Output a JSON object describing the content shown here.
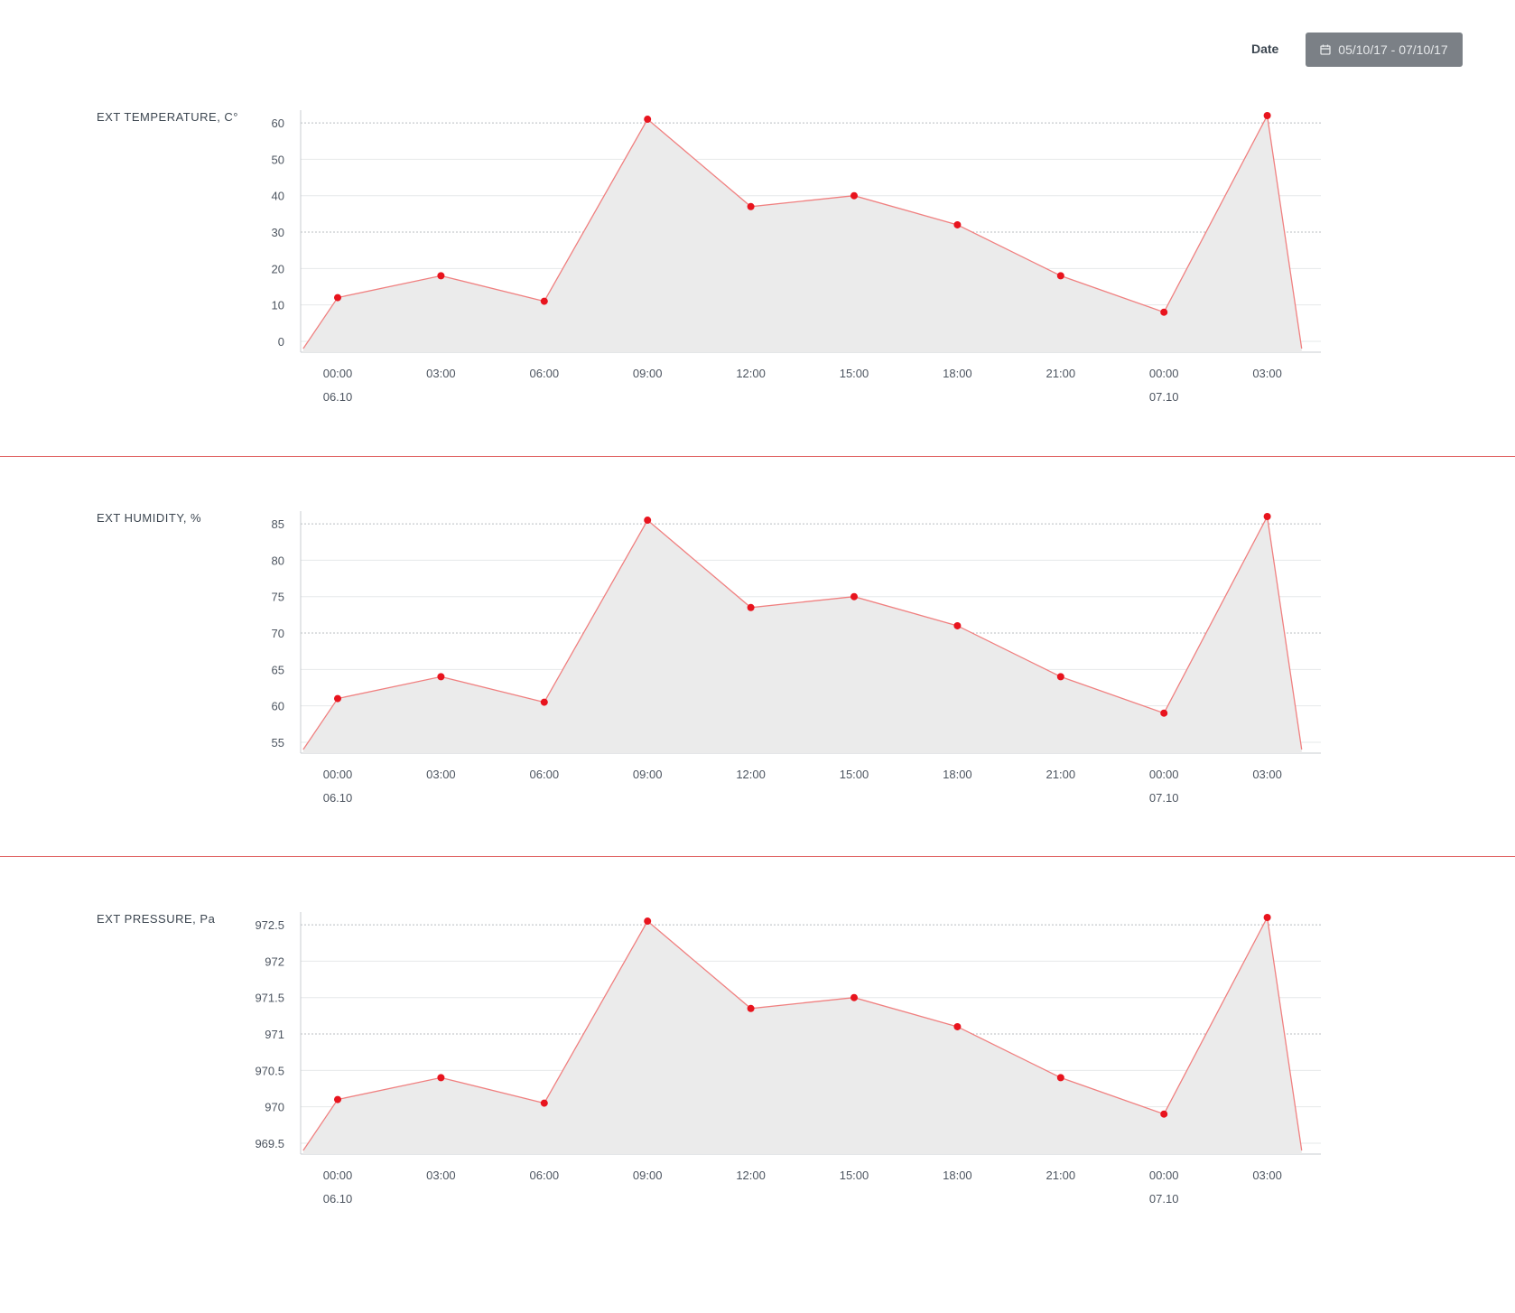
{
  "header": {
    "date_label": "Date",
    "date_range": "05/10/17 - 07/10/17",
    "date_icon": "calendar-icon"
  },
  "colors": {
    "line": "#f08080",
    "point": "#e8141e",
    "fill": "#ebebeb",
    "divider": "#e06464",
    "date_button": "#7b8086"
  },
  "chart_data": [
    {
      "type": "area",
      "title": "EXT TEMPERATURE, C°",
      "x_ticks": [
        "00:00",
        "03:00",
        "06:00",
        "09:00",
        "12:00",
        "15:00",
        "18:00",
        "21:00",
        "00:00",
        "03:00"
      ],
      "x_sublabels": [
        "06.10",
        "",
        "",
        "",
        "",
        "",
        "",
        "",
        "07.10",
        ""
      ],
      "y_ticks": [
        "0",
        "10",
        "20",
        "30",
        "40",
        "50",
        "60"
      ],
      "ylim": [
        -2,
        62
      ],
      "x": [
        "05.10 23:00",
        "06.10 00:00",
        "06.10 03:00",
        "06.10 06:00",
        "06.10 09:00",
        "06.10 12:00",
        "06.10 15:00",
        "06.10 18:00",
        "06.10 21:00",
        "07.10 00:00",
        "07.10 03:00",
        "07.10 04:00"
      ],
      "values": [
        -2,
        12,
        18,
        11,
        61,
        37,
        40,
        32,
        18,
        8,
        62,
        -2
      ],
      "points": [
        false,
        true,
        true,
        true,
        true,
        true,
        true,
        true,
        true,
        true,
        true,
        false
      ]
    },
    {
      "type": "area",
      "title": "EXT HUMIDITY, %",
      "x_ticks": [
        "00:00",
        "03:00",
        "06:00",
        "09:00",
        "12:00",
        "15:00",
        "18:00",
        "21:00",
        "00:00",
        "03:00"
      ],
      "x_sublabels": [
        "06.10",
        "",
        "",
        "",
        "",
        "",
        "",
        "",
        "07.10",
        ""
      ],
      "y_ticks": [
        "55",
        "60",
        "65",
        "70",
        "75",
        "80",
        "85"
      ],
      "ylim": [
        54,
        86
      ],
      "x": [
        "05.10 23:00",
        "06.10 00:00",
        "06.10 03:00",
        "06.10 06:00",
        "06.10 09:00",
        "06.10 12:00",
        "06.10 15:00",
        "06.10 18:00",
        "06.10 21:00",
        "07.10 00:00",
        "07.10 03:00",
        "07.10 04:00"
      ],
      "values": [
        54,
        61,
        64,
        60.5,
        85.5,
        73.5,
        75,
        71,
        64,
        59,
        86,
        54
      ],
      "points": [
        false,
        true,
        true,
        true,
        true,
        true,
        true,
        true,
        true,
        true,
        true,
        false
      ]
    },
    {
      "type": "area",
      "title": "EXT PRESSURE, Pa",
      "x_ticks": [
        "00:00",
        "03:00",
        "06:00",
        "09:00",
        "12:00",
        "15:00",
        "18:00",
        "21:00",
        "00:00",
        "03:00"
      ],
      "x_sublabels": [
        "06.10",
        "",
        "",
        "",
        "",
        "",
        "",
        "",
        "07.10",
        ""
      ],
      "y_ticks": [
        "969.5",
        "970",
        "970.5",
        "971",
        "971.5",
        "972",
        "972.5"
      ],
      "ylim": [
        969.4,
        972.6
      ],
      "x": [
        "05.10 23:00",
        "06.10 00:00",
        "06.10 03:00",
        "06.10 06:00",
        "06.10 09:00",
        "06.10 12:00",
        "06.10 15:00",
        "06.10 18:00",
        "06.10 21:00",
        "07.10 00:00",
        "07.10 03:00",
        "07.10 04:00"
      ],
      "values": [
        969.4,
        970.1,
        970.4,
        970.05,
        972.55,
        971.35,
        971.5,
        971.1,
        970.4,
        969.9,
        972.6,
        969.4
      ],
      "points": [
        false,
        true,
        true,
        true,
        true,
        true,
        true,
        true,
        true,
        true,
        true,
        false
      ]
    }
  ]
}
